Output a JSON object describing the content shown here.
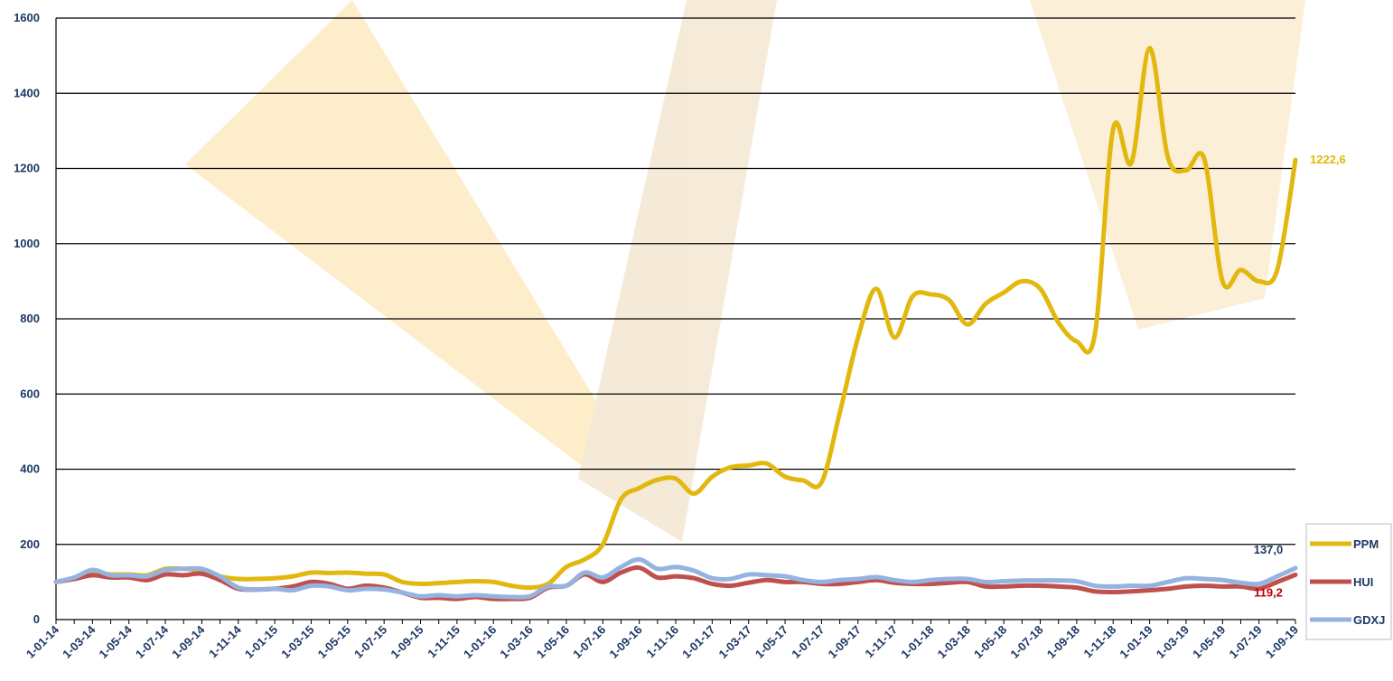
{
  "chart_data": {
    "type": "line",
    "categories": [
      "1-01-14",
      null,
      "1-03-14",
      null,
      "1-05-14",
      null,
      "1-07-14",
      null,
      "1-09-14",
      null,
      "1-11-14",
      null,
      "1-01-15",
      null,
      "1-03-15",
      null,
      "1-05-15",
      null,
      "1-07-15",
      null,
      "1-09-15",
      null,
      "1-11-15",
      null,
      "1-01-16",
      null,
      "1-03-16",
      null,
      "1-05-16",
      null,
      "1-07-16",
      null,
      "1-09-16",
      null,
      "1-11-16",
      null,
      "1-01-17",
      null,
      "1-03-17",
      null,
      "1-05-17",
      null,
      "1-07-17",
      null,
      "1-09-17",
      null,
      "1-11-17",
      null,
      "1-01-18",
      null,
      "1-03-18",
      null,
      "1-05-18",
      null,
      "1-07-18",
      null,
      "1-09-18",
      null,
      "1-11-18",
      null,
      "1-01-19",
      null,
      "1-03-19",
      null,
      "1-05-19",
      null,
      "1-07-19",
      null,
      "1-09-19"
    ],
    "series": [
      {
        "name": "PPM",
        "color": "#e2b80f",
        "values": [
          100,
          110,
          125,
          120,
          120,
          118,
          135,
          135,
          130,
          115,
          108,
          108,
          110,
          115,
          125,
          124,
          125,
          122,
          120,
          100,
          95,
          97,
          100,
          102,
          100,
          90,
          85,
          95,
          140,
          160,
          200,
          320,
          350,
          372,
          375,
          335,
          380,
          405,
          410,
          415,
          380,
          370,
          365,
          550,
          750,
          880,
          750,
          860,
          865,
          850,
          785,
          840,
          870,
          900,
          880,
          790,
          740,
          760,
          1305,
          1215,
          1520,
          1230,
          1195,
          1225,
          900,
          930,
          900,
          930,
          1222.6
        ],
        "value_labels": [
          null,
          null,
          null,
          null,
          null,
          null,
          null,
          null,
          null,
          null,
          null,
          null,
          null,
          null,
          null,
          null,
          null,
          null,
          null,
          null,
          null,
          null,
          null,
          null,
          null,
          null,
          null,
          null,
          null,
          null,
          null,
          null,
          null,
          null,
          null,
          null,
          null,
          null,
          null,
          null,
          null,
          null,
          null,
          null,
          null,
          null,
          null,
          null,
          null,
          null,
          null,
          null,
          null,
          null,
          null,
          null,
          null,
          null,
          null,
          null,
          null,
          null,
          null,
          null,
          null,
          null,
          null,
          null,
          "1222,6"
        ]
      },
      {
        "name": "HUI",
        "color": "#c0504d",
        "values": [
          100,
          108,
          118,
          112,
          112,
          105,
          120,
          118,
          122,
          105,
          82,
          80,
          82,
          88,
          100,
          95,
          82,
          90,
          85,
          72,
          58,
          58,
          55,
          60,
          55,
          55,
          58,
          85,
          90,
          120,
          100,
          125,
          138,
          112,
          115,
          110,
          95,
          90,
          98,
          105,
          100,
          100,
          95,
          95,
          100,
          105,
          98,
          95,
          95,
          98,
          100,
          88,
          88,
          90,
          90,
          88,
          85,
          75,
          73,
          75,
          78,
          82,
          88,
          90,
          88,
          88,
          82,
          100,
          119.2
        ],
        "value_labels": [
          null,
          null,
          null,
          null,
          null,
          null,
          null,
          null,
          null,
          null,
          null,
          null,
          null,
          null,
          null,
          null,
          null,
          null,
          null,
          null,
          null,
          null,
          null,
          null,
          null,
          null,
          null,
          null,
          null,
          null,
          null,
          null,
          null,
          null,
          null,
          null,
          null,
          null,
          null,
          null,
          null,
          null,
          null,
          null,
          null,
          null,
          null,
          null,
          null,
          null,
          null,
          null,
          null,
          null,
          null,
          null,
          null,
          null,
          null,
          null,
          null,
          null,
          null,
          null,
          null,
          null,
          null,
          null,
          "119,2"
        ]
      },
      {
        "name": "GDXJ",
        "color": "#95b3e0",
        "values": [
          100,
          112,
          132,
          118,
          118,
          115,
          132,
          135,
          135,
          115,
          85,
          80,
          82,
          78,
          90,
          88,
          78,
          82,
          80,
          72,
          62,
          65,
          62,
          65,
          62,
          60,
          62,
          88,
          90,
          125,
          112,
          140,
          160,
          135,
          140,
          130,
          110,
          108,
          120,
          118,
          115,
          105,
          100,
          105,
          108,
          113,
          105,
          100,
          105,
          108,
          108,
          100,
          102,
          104,
          104,
          104,
          102,
          90,
          88,
          90,
          90,
          100,
          110,
          108,
          105,
          98,
          95,
          115,
          137.0
        ],
        "value_labels": [
          null,
          null,
          null,
          null,
          null,
          null,
          null,
          null,
          null,
          null,
          null,
          null,
          null,
          null,
          null,
          null,
          null,
          null,
          null,
          null,
          null,
          null,
          null,
          null,
          null,
          null,
          null,
          null,
          null,
          null,
          null,
          null,
          null,
          null,
          null,
          null,
          null,
          null,
          null,
          null,
          null,
          null,
          null,
          null,
          null,
          null,
          null,
          null,
          null,
          null,
          null,
          null,
          null,
          null,
          null,
          null,
          null,
          null,
          null,
          null,
          null,
          null,
          null,
          null,
          null,
          null,
          null,
          null,
          "137,0"
        ]
      }
    ],
    "ylim": [
      0,
      1600
    ],
    "yticks": [
      0,
      200,
      400,
      600,
      800,
      1000,
      1200,
      1400,
      1600
    ],
    "grid": true,
    "legend": "bottom-right"
  }
}
